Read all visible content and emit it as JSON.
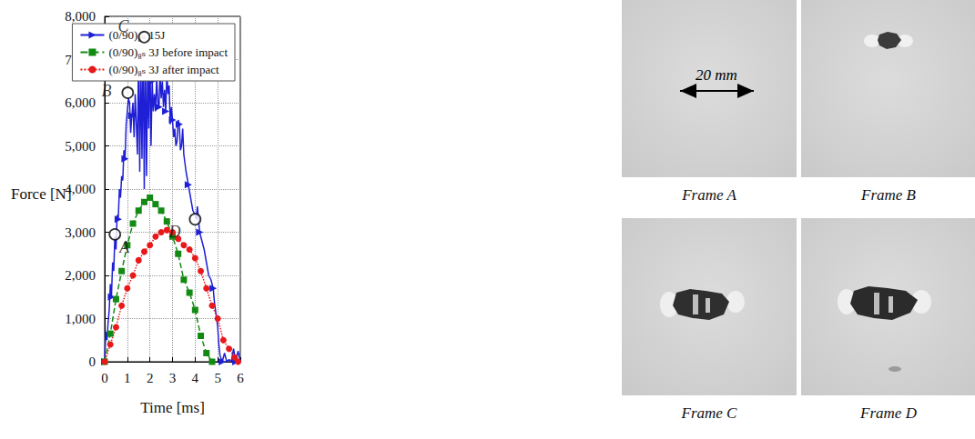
{
  "chart_data": {
    "type": "line",
    "x_label": "Time [ms]",
    "y_label": "Force [N]",
    "xlim": [
      0,
      6
    ],
    "xticks": [
      0,
      1,
      2,
      3,
      4,
      5,
      6
    ],
    "ylim": [
      0,
      8000
    ],
    "yticks": [
      0,
      1000,
      2000,
      3000,
      4000,
      5000,
      6000,
      7000,
      8000
    ],
    "grid": true,
    "legend": "upper right",
    "series": [
      {
        "name": "(0/90)₈ₛ 15J",
        "color": "#1f1fd6",
        "marker": "triangle",
        "line_style": "solid",
        "x": [
          0,
          0.05,
          0.1,
          0.15,
          0.2,
          0.25,
          0.3,
          0.35,
          0.4,
          0.45,
          0.5,
          0.55,
          0.6,
          0.65,
          0.7,
          0.75,
          0.8,
          0.85,
          0.9,
          0.95,
          1.0,
          1.05,
          1.1,
          1.15,
          1.2,
          1.25,
          1.3,
          1.35,
          1.4,
          1.45,
          1.5,
          1.55,
          1.6,
          1.65,
          1.7,
          1.75,
          1.8,
          1.85,
          1.9,
          1.95,
          2.0,
          2.05,
          2.1,
          2.15,
          2.2,
          2.25,
          2.3,
          2.35,
          2.4,
          2.45,
          2.5,
          2.55,
          2.6,
          2.65,
          2.7,
          2.75,
          2.8,
          2.85,
          2.9,
          2.95,
          3.0,
          3.05,
          3.1,
          3.15,
          3.2,
          3.25,
          3.3,
          3.35,
          3.4,
          3.45,
          3.5,
          3.6,
          3.7,
          3.8,
          3.9,
          4.0,
          4.05,
          4.1,
          4.2,
          4.3,
          4.4,
          4.5,
          4.6,
          4.7,
          4.8,
          4.85,
          4.9,
          5.0,
          5.05,
          5.1,
          5.2,
          5.3,
          5.4,
          5.5,
          5.6,
          5.7,
          5.8,
          5.9,
          6.0
        ],
        "values": [
          0,
          700,
          500,
          900,
          1200,
          1800,
          1500,
          2300,
          2100,
          2900,
          2600,
          3400,
          3300,
          4000,
          3800,
          4300,
          4200,
          4900,
          4700,
          5500,
          5800,
          6100,
          6000,
          5300,
          5700,
          6000,
          5200,
          6200,
          5500,
          4800,
          7200,
          4400,
          6900,
          4700,
          7500,
          4000,
          7300,
          4300,
          6800,
          5400,
          7300,
          5000,
          6500,
          5800,
          6200,
          5800,
          6600,
          6000,
          5900,
          6700,
          6100,
          6500,
          5900,
          6300,
          5800,
          6700,
          6200,
          6400,
          5500,
          5900,
          5600,
          5200,
          5400,
          5000,
          5100,
          5600,
          5500,
          4900,
          5000,
          5400,
          4800,
          4400,
          4100,
          3800,
          3500,
          3400,
          3300,
          3600,
          3000,
          2800,
          2600,
          2300,
          2000,
          1900,
          1700,
          1400,
          1200,
          800,
          400,
          150,
          0,
          200,
          0,
          50,
          0,
          300,
          0,
          250,
          0
        ]
      },
      {
        "name": "(0/90)₈ₛ 3J before impact",
        "color": "#138a13",
        "marker": "square",
        "line_style": "dashed",
        "x": [
          0,
          0.25,
          0.5,
          0.75,
          1.0,
          1.25,
          1.5,
          1.75,
          2.0,
          2.25,
          2.5,
          2.75,
          3.0,
          3.25,
          3.5,
          3.75,
          4.0,
          4.25,
          4.5,
          4.75
        ],
        "values": [
          0,
          650,
          1450,
          2100,
          2700,
          3200,
          3500,
          3700,
          3800,
          3650,
          3500,
          3250,
          2900,
          2500,
          1900,
          1600,
          1200,
          600,
          200,
          0
        ]
      },
      {
        "name": "(0/90)₈ₛ 3J after impact",
        "color": "#e8191b",
        "marker": "circle",
        "line_style": "dotted",
        "x": [
          0,
          0.25,
          0.5,
          0.75,
          1.0,
          1.25,
          1.5,
          1.75,
          2.0,
          2.25,
          2.5,
          2.75,
          3.0,
          3.25,
          3.5,
          3.75,
          4.0,
          4.25,
          4.5,
          4.75,
          5.0,
          5.25,
          5.5,
          5.75,
          5.9
        ],
        "values": [
          0,
          400,
          800,
          1300,
          1700,
          2000,
          2350,
          2550,
          2700,
          2900,
          3000,
          3050,
          3000,
          2850,
          2700,
          2600,
          2400,
          2100,
          1700,
          1300,
          1000,
          500,
          300,
          100,
          0
        ]
      }
    ],
    "annotations": [
      {
        "label": "A",
        "x": 0.45,
        "y": 2950
      },
      {
        "label": "B",
        "x": 1.02,
        "y": 6230
      },
      {
        "label": "C",
        "x": 1.75,
        "y": 7520
      },
      {
        "label": "D",
        "x": 4.0,
        "y": 3300
      }
    ]
  },
  "frames": {
    "labels": [
      "Frame A",
      "Frame B",
      "Frame C",
      "Frame D"
    ],
    "scale_label": "20 mm"
  }
}
